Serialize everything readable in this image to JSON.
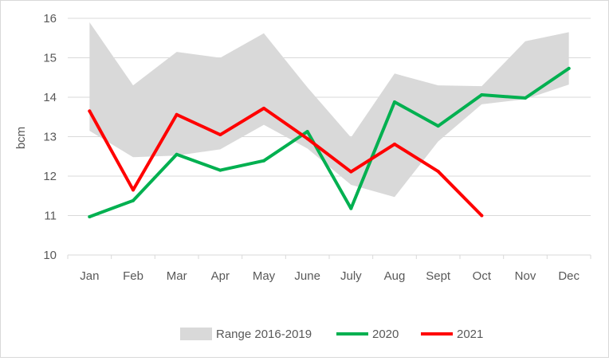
{
  "chart_data": {
    "type": "line",
    "title": "",
    "xlabel": "",
    "ylabel": "bcm",
    "ylim": [
      10,
      16
    ],
    "yticks": [
      10,
      11,
      12,
      13,
      14,
      15,
      16
    ],
    "grid": "horizontal",
    "legend_position": "bottom",
    "categories": [
      "Jan",
      "Feb",
      "Mar",
      "Apr",
      "May",
      "June",
      "July",
      "Aug",
      "Sept",
      "Oct",
      "Nov",
      "Dec"
    ],
    "range": {
      "name": "Range 2016-2019",
      "color": "#d9d9d9",
      "upper": [
        15.9,
        14.3,
        15.15,
        15.0,
        15.62,
        14.25,
        12.98,
        14.6,
        14.3,
        14.28,
        15.42,
        15.65
      ],
      "lower": [
        13.15,
        12.48,
        12.52,
        12.68,
        13.3,
        12.7,
        11.78,
        11.47,
        12.88,
        13.82,
        13.95,
        14.32
      ]
    },
    "series": [
      {
        "name": "2020",
        "color": "#00b050",
        "values": [
          10.97,
          11.38,
          12.55,
          12.15,
          12.39,
          13.13,
          11.18,
          13.88,
          13.27,
          14.06,
          13.98,
          14.73
        ]
      },
      {
        "name": "2021",
        "color": "#ff0000",
        "values": [
          13.65,
          11.65,
          13.56,
          13.05,
          13.72,
          12.95,
          12.11,
          12.81,
          12.12,
          11.0,
          null,
          null
        ]
      }
    ]
  }
}
